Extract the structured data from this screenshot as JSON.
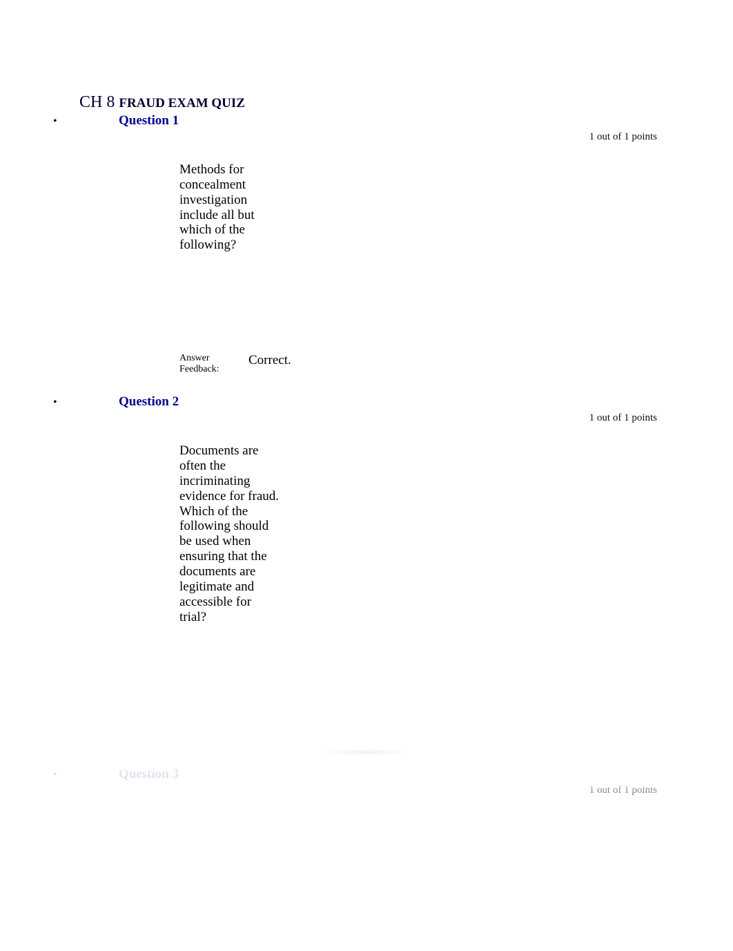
{
  "title": {
    "prefix": "CH 8 ",
    "main": "FRAUD EXAM QUIZ"
  },
  "questions": [
    {
      "heading": "Question 1",
      "points": "1 out of 1 points",
      "body": "Methods for concealment investigation include all but which of the following?",
      "feedback_label": "Answer Feedback:",
      "feedback_text": "Correct."
    },
    {
      "heading": "Question 2",
      "points": "1 out of 1 points",
      "body": "Documents are often the incriminating evidence for fraud. Which of the following should be used when ensuring that the documents are legitimate and accessible for trial?"
    },
    {
      "heading": "Question 3",
      "points": "1 out of 1 points"
    }
  ],
  "colors": {
    "heading_color": "#00008b",
    "title_color": "#000033",
    "text_color": "#000000",
    "background": "#ffffff"
  }
}
